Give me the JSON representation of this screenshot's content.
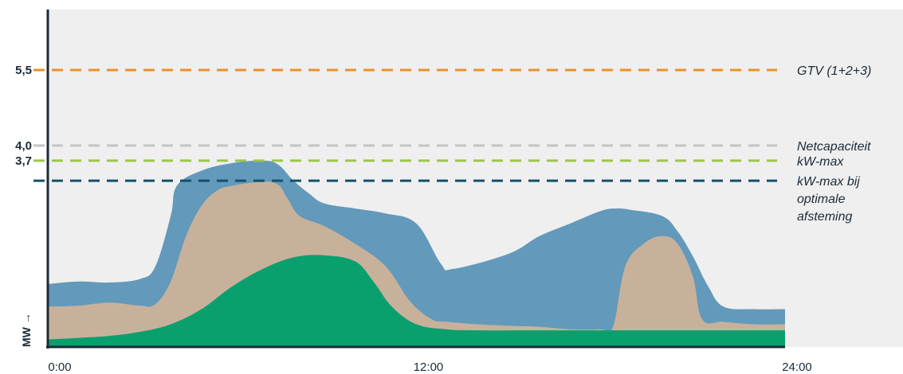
{
  "chart_data": {
    "type": "area",
    "title": "",
    "xlabel": "",
    "ylabel": "MW →",
    "ylim": [
      0,
      6.7
    ],
    "xlim": [
      0,
      24
    ],
    "x_ticks": [
      "0:00",
      "12:00",
      "24:00"
    ],
    "y_ticks": [
      {
        "value": 5.5,
        "label": "5,5"
      },
      {
        "value": 4.0,
        "label": "4,0"
      },
      {
        "value": 3.7,
        "label": "3,7"
      }
    ],
    "reference_lines": [
      {
        "value": 5.5,
        "label": "GTV (1+2+3)",
        "color": "#e8912a"
      },
      {
        "value": 4.0,
        "label": "Netcapaciteit",
        "color": "#c4c4c4"
      },
      {
        "value": 3.7,
        "label": "kW-max",
        "color": "#9cc64a"
      },
      {
        "value": 3.3,
        "label": "kW-max bij optimale afsteming",
        "label_lines": [
          "kW-max bij",
          "optimale",
          "afsteming"
        ],
        "color": "#14506b"
      }
    ],
    "series": [
      {
        "color": "#0aa06e",
        "points": [
          [
            0,
            0.15
          ],
          [
            1,
            0.18
          ],
          [
            2,
            0.22
          ],
          [
            3,
            0.3
          ],
          [
            4,
            0.45
          ],
          [
            5,
            0.75
          ],
          [
            6,
            1.2
          ],
          [
            7,
            1.55
          ],
          [
            8,
            1.78
          ],
          [
            9,
            1.82
          ],
          [
            10,
            1.7
          ],
          [
            10.6,
            1.3
          ],
          [
            11.2,
            0.8
          ],
          [
            12,
            0.45
          ],
          [
            13,
            0.35
          ],
          [
            14,
            0.33
          ],
          [
            16,
            0.33
          ],
          [
            18,
            0.33
          ],
          [
            20,
            0.33
          ],
          [
            22,
            0.33
          ],
          [
            24,
            0.33
          ]
        ]
      },
      {
        "color": "#c8b19b",
        "points": [
          [
            0,
            0.8
          ],
          [
            1,
            0.82
          ],
          [
            2,
            0.88
          ],
          [
            3,
            0.82
          ],
          [
            3.5,
            0.85
          ],
          [
            4,
            1.3
          ],
          [
            4.5,
            2.2
          ],
          [
            5,
            2.8
          ],
          [
            5.5,
            3.1
          ],
          [
            6,
            3.2
          ],
          [
            7,
            3.28
          ],
          [
            7.5,
            3.22
          ],
          [
            7.8,
            2.95
          ],
          [
            8.2,
            2.6
          ],
          [
            9,
            2.4
          ],
          [
            10,
            2.05
          ],
          [
            11,
            1.6
          ],
          [
            11.8,
            0.9
          ],
          [
            12.5,
            0.55
          ],
          [
            13,
            0.5
          ],
          [
            14,
            0.45
          ],
          [
            15,
            0.42
          ],
          [
            16,
            0.4
          ],
          [
            17,
            0.35
          ],
          [
            18,
            0.35
          ],
          [
            18.4,
            0.4
          ],
          [
            18.8,
            1.6
          ],
          [
            19.4,
            2.05
          ],
          [
            20,
            2.2
          ],
          [
            20.5,
            2.05
          ],
          [
            21,
            1.4
          ],
          [
            21.3,
            0.55
          ],
          [
            22,
            0.5
          ],
          [
            23,
            0.45
          ],
          [
            24,
            0.45
          ]
        ]
      },
      {
        "color": "#6399bb",
        "points": [
          [
            0,
            1.25
          ],
          [
            1,
            1.3
          ],
          [
            2,
            1.28
          ],
          [
            3,
            1.35
          ],
          [
            3.5,
            1.6
          ],
          [
            4,
            2.6
          ],
          [
            4.2,
            3.2
          ],
          [
            5,
            3.5
          ],
          [
            6,
            3.65
          ],
          [
            7,
            3.7
          ],
          [
            7.5,
            3.62
          ],
          [
            8,
            3.3
          ],
          [
            8.5,
            3.05
          ],
          [
            9,
            2.85
          ],
          [
            10,
            2.75
          ],
          [
            11,
            2.65
          ],
          [
            12,
            2.45
          ],
          [
            12.8,
            1.65
          ],
          [
            13.2,
            1.55
          ],
          [
            15,
            1.85
          ],
          [
            16,
            2.2
          ],
          [
            17,
            2.45
          ],
          [
            18,
            2.7
          ],
          [
            18.5,
            2.75
          ],
          [
            19,
            2.72
          ],
          [
            20,
            2.6
          ],
          [
            20.5,
            2.3
          ],
          [
            21,
            1.8
          ],
          [
            21.5,
            1.2
          ],
          [
            22,
            0.8
          ],
          [
            23,
            0.75
          ],
          [
            24,
            0.75
          ]
        ]
      }
    ]
  }
}
